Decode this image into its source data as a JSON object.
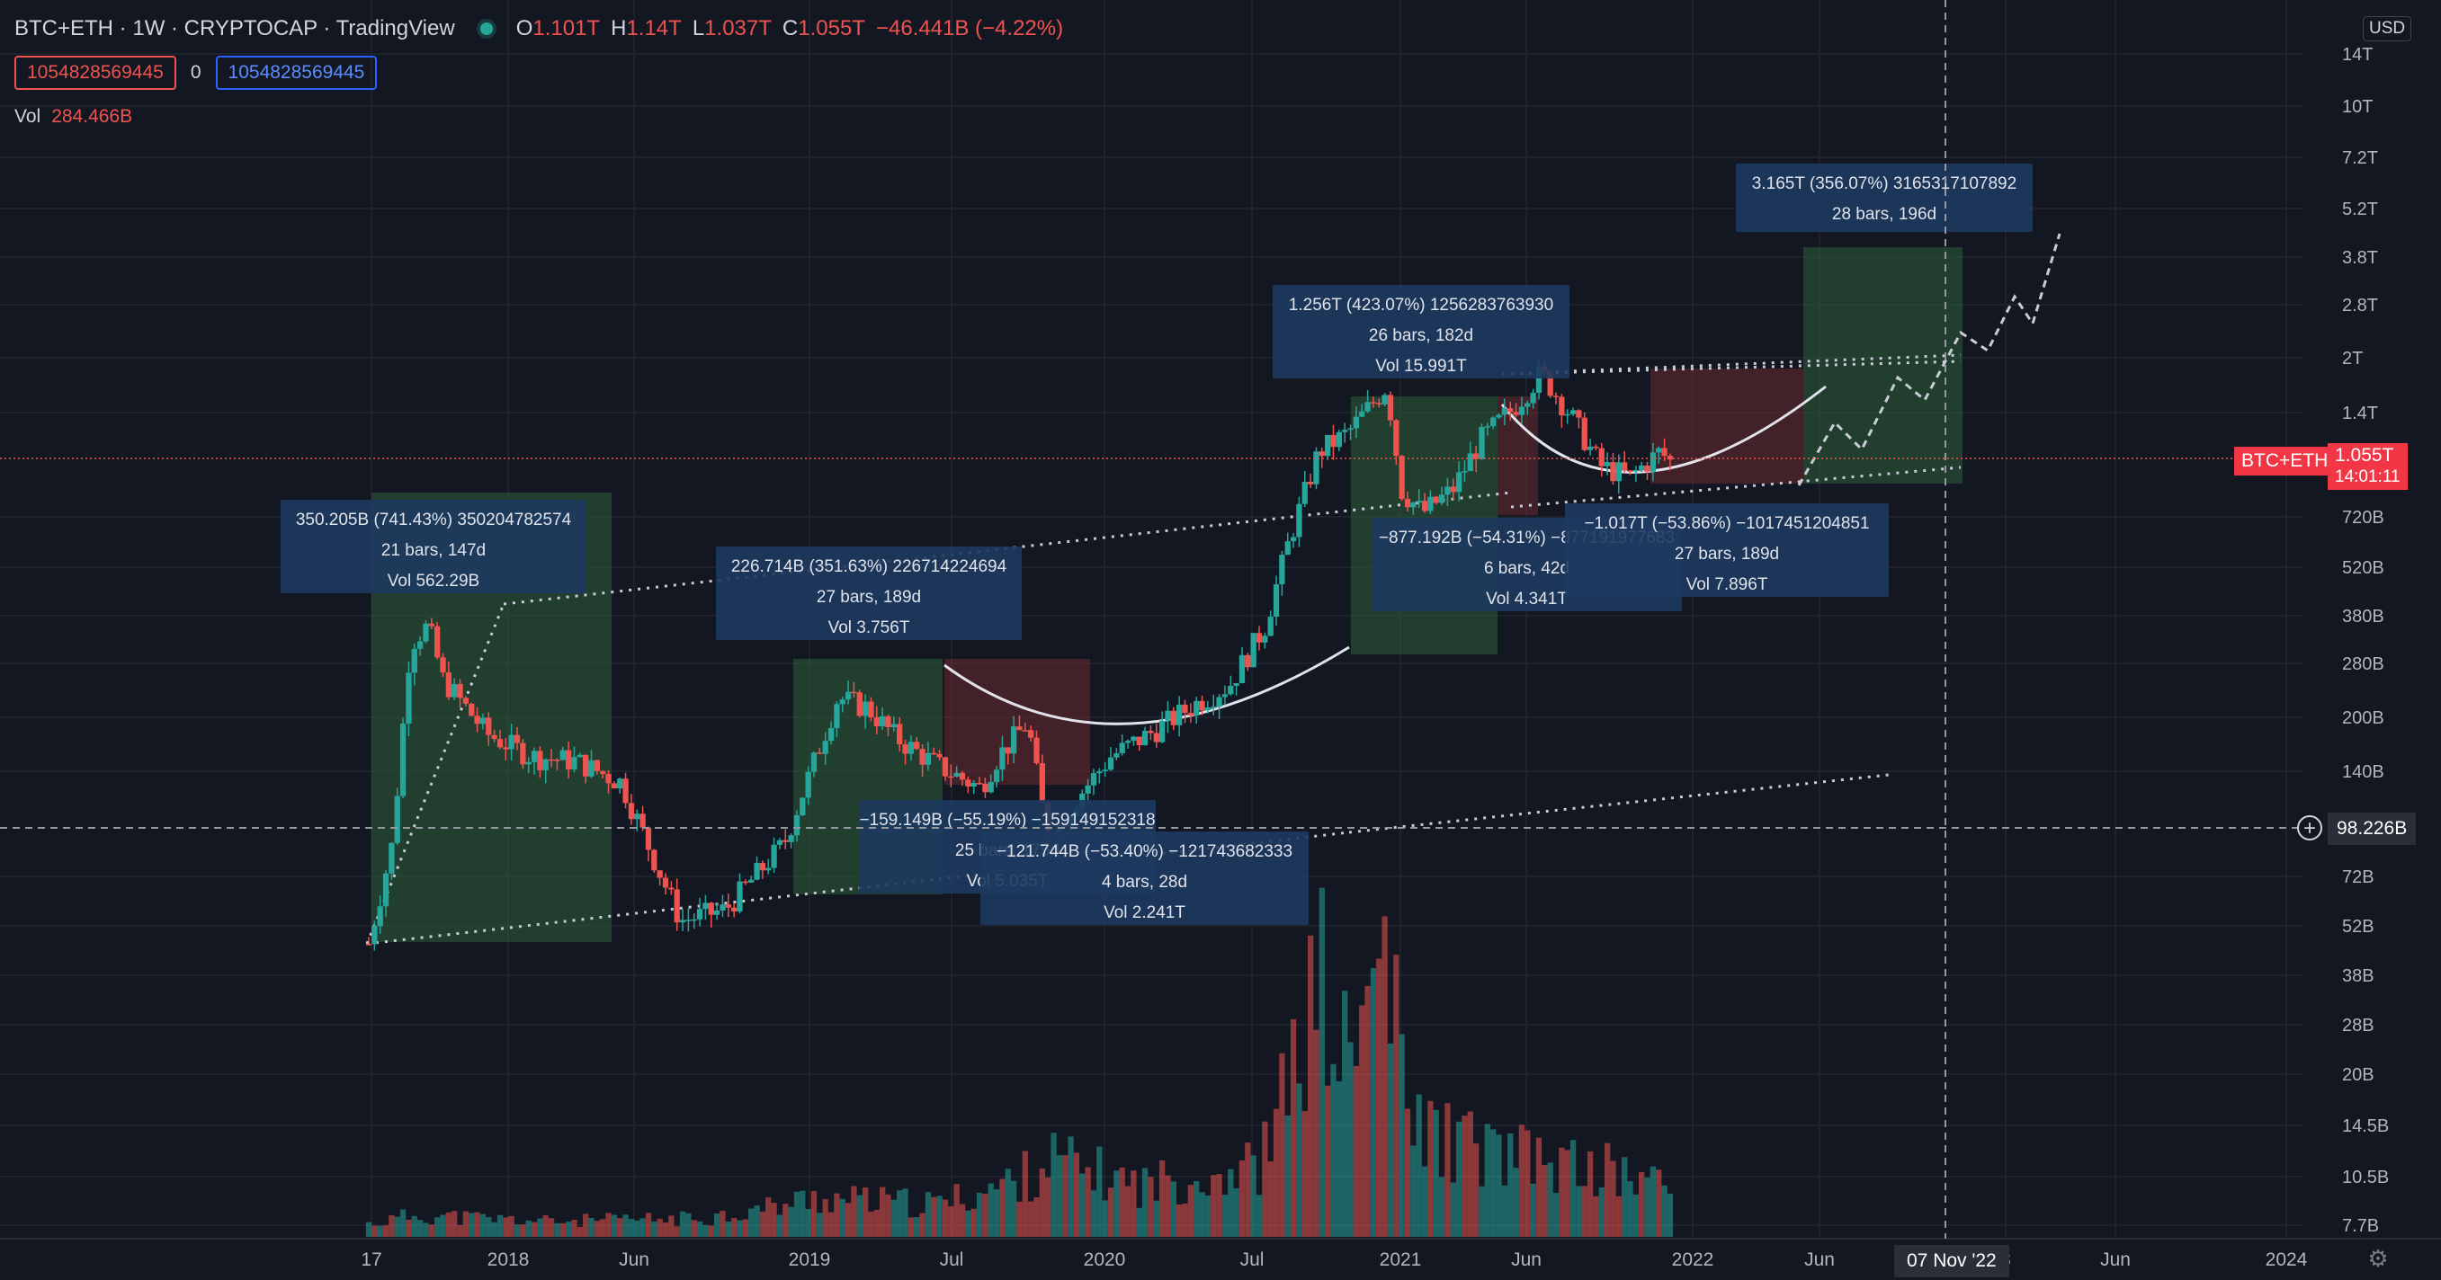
{
  "header": {
    "symbol": "BTC+ETH · 1W · CRYPTOCAP · TradingView",
    "ohlc": {
      "o_label": "O",
      "o": "1.101T",
      "h_label": "H",
      "h": "1.14T",
      "l_label": "L",
      "l": "1.037T",
      "c_label": "C",
      "c": "1.055T",
      "change": "−46.441B (−4.22%)"
    },
    "value_red": "1054828569445",
    "spread": "0",
    "value_blue": "1054828569445",
    "vol_label": "Vol",
    "vol_value": "284.466B"
  },
  "currency": "USD",
  "symbol_tag": "BTC+ETH",
  "last_price": "1.055T",
  "countdown": "14:01:11",
  "crosshair_price": "98.226B",
  "crosshair_date": "07 Nov '22",
  "colors": {
    "background": "#131722",
    "up": "#26a69a",
    "down": "#ef5350",
    "measure_box": "#1e3a5f",
    "green_range": "#2e5e3a",
    "red_range": "#6b2a30"
  },
  "chart_data": {
    "type": "candlestick",
    "y_scale": "log",
    "y_ticks": [
      "14T",
      "10T",
      "7.2T",
      "5.2T",
      "3.8T",
      "2.8T",
      "2T",
      "1.4T",
      "720B",
      "520B",
      "380B",
      "280B",
      "200B",
      "140B",
      "72B",
      "52B",
      "38B",
      "28B",
      "20B",
      "14.5B",
      "10.5B",
      "7.7B"
    ],
    "x_ticks": [
      "17",
      "2018",
      "Jun",
      "2019",
      "Jul",
      "2020",
      "Jul",
      "2021",
      "Jun",
      "2022",
      "Jun",
      "3",
      "Jun",
      "2024"
    ],
    "price_path": [
      [
        2017.9,
        50
      ],
      [
        2017.98,
        95
      ],
      [
        2018.04,
        340
      ],
      [
        2018.1,
        380
      ],
      [
        2018.15,
        270
      ],
      [
        2018.3,
        190
      ],
      [
        2018.45,
        165
      ],
      [
        2018.6,
        160
      ],
      [
        2018.75,
        140
      ],
      [
        2018.85,
        90
      ],
      [
        2018.95,
        58
      ],
      [
        2019.1,
        62
      ],
      [
        2019.3,
        95
      ],
      [
        2019.48,
        240
      ],
      [
        2019.58,
        225
      ],
      [
        2019.68,
        185
      ],
      [
        2019.82,
        155
      ],
      [
        2019.96,
        135
      ],
      [
        2020.02,
        165
      ],
      [
        2020.12,
        205
      ],
      [
        2020.19,
        95
      ],
      [
        2020.28,
        125
      ],
      [
        2020.4,
        165
      ],
      [
        2020.55,
        195
      ],
      [
        2020.7,
        235
      ],
      [
        2020.8,
        260
      ],
      [
        2020.92,
        380
      ],
      [
        2021.0,
        650
      ],
      [
        2021.1,
        1150
      ],
      [
        2021.2,
        1300
      ],
      [
        2021.33,
        1750
      ],
      [
        2021.38,
        900
      ],
      [
        2021.45,
        780
      ],
      [
        2021.55,
        900
      ],
      [
        2021.65,
        1250
      ],
      [
        2021.75,
        1500
      ],
      [
        2021.85,
        1900
      ],
      [
        2021.95,
        1450
      ],
      [
        2022.05,
        1050
      ],
      [
        2022.15,
        980
      ],
      [
        2022.25,
        1150
      ],
      [
        2022.3,
        1055
      ]
    ],
    "volume_path": [
      [
        2017.9,
        10
      ],
      [
        2018.05,
        17
      ],
      [
        2018.5,
        12
      ],
      [
        2019.0,
        14
      ],
      [
        2019.4,
        30
      ],
      [
        2019.8,
        25
      ],
      [
        2020.1,
        45
      ],
      [
        2020.2,
        60
      ],
      [
        2020.5,
        40
      ],
      [
        2020.9,
        55
      ],
      [
        2021.0,
        120
      ],
      [
        2021.1,
        200
      ],
      [
        2021.2,
        130
      ],
      [
        2021.33,
        240
      ],
      [
        2021.4,
        90
      ],
      [
        2021.6,
        70
      ],
      [
        2021.9,
        55
      ],
      [
        2022.1,
        50
      ],
      [
        2022.3,
        38
      ]
    ],
    "annotations": [
      {
        "lines": [
          "350.205B (741.43%) 350204782574",
          "21 bars, 147d",
          "Vol 562.29B"
        ]
      },
      {
        "lines": [
          "226.714B (351.63%) 226714224694",
          "27 bars, 189d",
          "Vol 3.756T"
        ]
      },
      {
        "lines": [
          "−159.149B (−55.19%) −159149152318",
          "25 bars, 175d",
          "Vol 5.035T"
        ]
      },
      {
        "lines": [
          "−121.744B (−53.40%) −121743682333",
          "4 bars, 28d",
          "Vol 2.241T"
        ]
      },
      {
        "lines": [
          "1.256T (423.07%) 1256283763930",
          "26 bars, 182d",
          "Vol 15.991T"
        ]
      },
      {
        "lines": [
          "−877.192B (−54.31%) −877191977683",
          "6 bars, 42d",
          "Vol 4.341T"
        ]
      },
      {
        "lines": [
          "−1.017T (−53.86%) −1017451204851",
          "27 bars, 189d",
          "Vol 7.896T"
        ]
      },
      {
        "lines": [
          "3.165T (356.07%) 3165317107892",
          "28 bars, 196d"
        ]
      }
    ]
  }
}
